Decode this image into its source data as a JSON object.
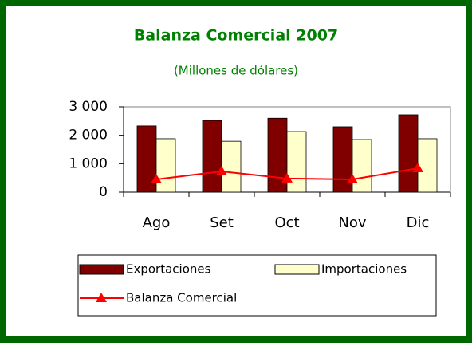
{
  "chart_data": {
    "type": "bar_line",
    "title": "Balanza Comercial 2007",
    "subtitle": "(Millones de dólares)",
    "categories": [
      "Ago",
      "Set",
      "Oct",
      "Nov",
      "Dic"
    ],
    "series": [
      {
        "name": "Exportaciones",
        "type": "bar",
        "color": "#800000",
        "values": [
          2330,
          2520,
          2600,
          2300,
          2720
        ]
      },
      {
        "name": "Importaciones",
        "type": "bar",
        "color": "#ffffcc",
        "values": [
          1880,
          1790,
          2130,
          1850,
          1880
        ]
      },
      {
        "name": "Balanza Comercial",
        "type": "line",
        "color": "#ff0000",
        "values": [
          450,
          730,
          480,
          450,
          840
        ]
      }
    ],
    "ylim": [
      0,
      3000
    ],
    "yticks": [
      0,
      {
        "value": 1000,
        "label": "1 000"
      },
      {
        "value": 2000,
        "label": "2 000"
      },
      {
        "value": 3000,
        "label": "3 000"
      }
    ],
    "title_color": "#008000",
    "border_color": "#006600"
  }
}
